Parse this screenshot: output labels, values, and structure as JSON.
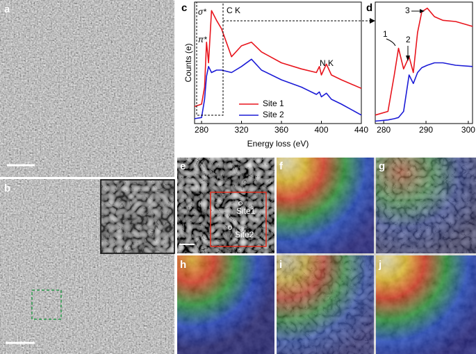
{
  "panel_labels": [
    "a",
    "b",
    "c",
    "d",
    "e",
    "f",
    "g",
    "h",
    "i",
    "j"
  ],
  "image_labels": [
    "Site1",
    "Site2"
  ],
  "chart_data": [
    {
      "type": "line",
      "xlabel": "Energy loss (eV)",
      "ylabel": "Counts (e)",
      "annotations": [
        "σ*",
        "π*",
        "C K",
        "N K"
      ],
      "x": [
        273,
        280,
        283,
        285,
        287,
        290,
        295,
        300,
        310,
        320,
        330,
        340,
        360,
        380,
        395,
        398,
        400,
        405,
        410,
        420,
        440
      ],
      "xlim": [
        273,
        440
      ],
      "xticks": [
        280,
        320,
        360,
        400,
        440
      ],
      "ylim": [
        0,
        100
      ],
      "series": [
        {
          "name": "Site 1",
          "color": "#e8141c",
          "values": [
            14,
            16,
            30,
            67,
            50,
            93,
            85,
            78,
            55,
            64,
            67,
            59,
            50,
            45,
            42,
            47,
            40,
            49,
            40,
            36,
            29
          ]
        },
        {
          "name": "Site 2",
          "color": "#1a1ad6",
          "values": [
            4,
            5,
            20,
            39,
            47,
            42,
            44,
            44,
            42,
            47,
            53,
            44,
            36,
            30,
            24,
            26,
            22,
            25,
            20,
            16,
            7
          ]
        }
      ]
    },
    {
      "type": "line",
      "annotations": [
        "1",
        "2",
        "3"
      ],
      "x": [
        278,
        281,
        282.5,
        283.5,
        284.7,
        286,
        287,
        288,
        289,
        290.3,
        292,
        294,
        297,
        301
      ],
      "xlim": [
        278,
        301
      ],
      "xticks": [
        280,
        290,
        300
      ],
      "ylim": [
        0,
        100
      ],
      "series": [
        {
          "color": "#e8141c",
          "values": [
            7,
            10,
            40,
            62,
            45,
            55,
            42,
            75,
            92,
            95,
            88,
            85,
            84,
            80
          ]
        },
        {
          "color": "#1a1ad6",
          "values": [
            2,
            3,
            4,
            5,
            10,
            40,
            33,
            42,
            46,
            48,
            50,
            50,
            48,
            47
          ]
        }
      ]
    }
  ]
}
